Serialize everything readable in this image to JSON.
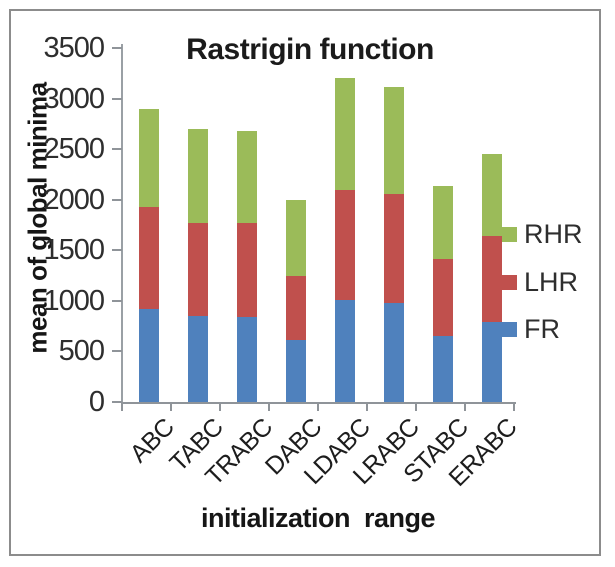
{
  "chart_data": {
    "type": "bar",
    "stacked": true,
    "title": "Rastrigin function",
    "xlabel": "initialization range",
    "ylabel": "mean of global minima",
    "categories": [
      "ABC",
      "TABC",
      "TRABC",
      "DABC",
      "LDABC",
      "LRABC",
      "STABC",
      "ERABC"
    ],
    "series": [
      {
        "name": "FR",
        "color": "#4f81bd",
        "values": [
          920,
          850,
          840,
          610,
          1010,
          980,
          650,
          790
        ]
      },
      {
        "name": "LHR",
        "color": "#c0504d",
        "values": [
          1010,
          920,
          930,
          640,
          1090,
          1080,
          760,
          850
        ]
      },
      {
        "name": "RHR",
        "color": "#9bbb59",
        "values": [
          970,
          930,
          910,
          750,
          1100,
          1050,
          730,
          810
        ]
      }
    ],
    "stack_totals": [
      2900,
      2700,
      2680,
      2000,
      3200,
      3110,
      2140,
      2450
    ],
    "ylim": [
      0,
      3500
    ],
    "ytick_interval": 500,
    "ytick_labels": [
      "0",
      "500",
      "1000",
      "1500",
      "2000",
      "2500",
      "3000",
      "3500"
    ],
    "legend_position": "right",
    "legend_entries_top_to_bottom": [
      "RHR",
      "LHR",
      "FR"
    ],
    "grid": false
  },
  "colors": {
    "fr_blue": "#4f81bd",
    "lhr_red": "#c0504d",
    "rhr_green": "#9bbb59",
    "axis_gray": "#8f9499",
    "frame_gray": "#8c8c8c",
    "text_dark": "#1b1b1b"
  }
}
